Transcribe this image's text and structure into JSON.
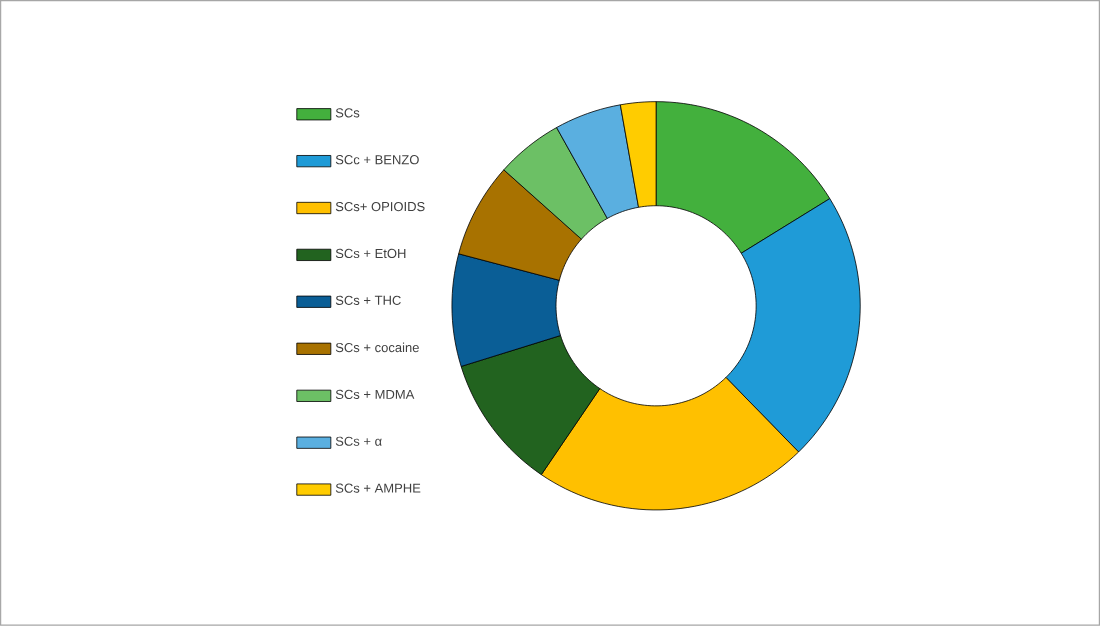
{
  "chart_data": {
    "type": "donut",
    "categories": [
      "SCs",
      "SCc + BENZO",
      "SCs+ OPIOIDS",
      "SCs + EtOH",
      "SCs + THC",
      "SCs + cocaine",
      "SCs + MDMA",
      "SCs + α",
      "SCs + AMPHE"
    ],
    "values": [
      16.2,
      21.5,
      21.8,
      10.7,
      8.9,
      7.5,
      5.3,
      5.3,
      2.8
    ],
    "colors": [
      "#43b03d",
      "#1f9bd7",
      "#ffc000",
      "#22631f",
      "#0a5e96",
      "#a87200",
      "#6cc065",
      "#5aafe0",
      "#ffcc00"
    ],
    "legend": "left"
  }
}
